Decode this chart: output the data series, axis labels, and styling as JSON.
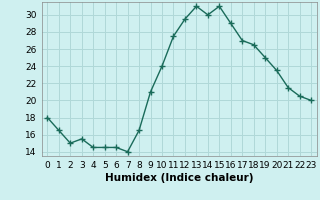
{
  "x": [
    0,
    1,
    2,
    3,
    4,
    5,
    6,
    7,
    8,
    9,
    10,
    11,
    12,
    13,
    14,
    15,
    16,
    17,
    18,
    19,
    20,
    21,
    22,
    23
  ],
  "y": [
    18,
    16.5,
    15,
    15.5,
    14.5,
    14.5,
    14.5,
    14,
    16.5,
    21,
    24,
    27.5,
    29.5,
    31,
    30,
    31,
    29,
    27,
    26.5,
    25,
    23.5,
    21.5,
    20.5,
    20
  ],
  "line_color": "#1a6b5a",
  "marker": "+",
  "bg_color": "#cff0f0",
  "grid_color": "#b0d8d8",
  "xlabel": "Humidex (Indice chaleur)",
  "xlim": [
    -0.5,
    23.5
  ],
  "ylim": [
    13.5,
    31.5
  ],
  "yticks": [
    14,
    16,
    18,
    20,
    22,
    24,
    26,
    28,
    30
  ],
  "xticks": [
    0,
    1,
    2,
    3,
    4,
    5,
    6,
    7,
    8,
    9,
    10,
    11,
    12,
    13,
    14,
    15,
    16,
    17,
    18,
    19,
    20,
    21,
    22,
    23
  ],
  "tick_fontsize": 6.5,
  "label_fontsize": 7.5
}
